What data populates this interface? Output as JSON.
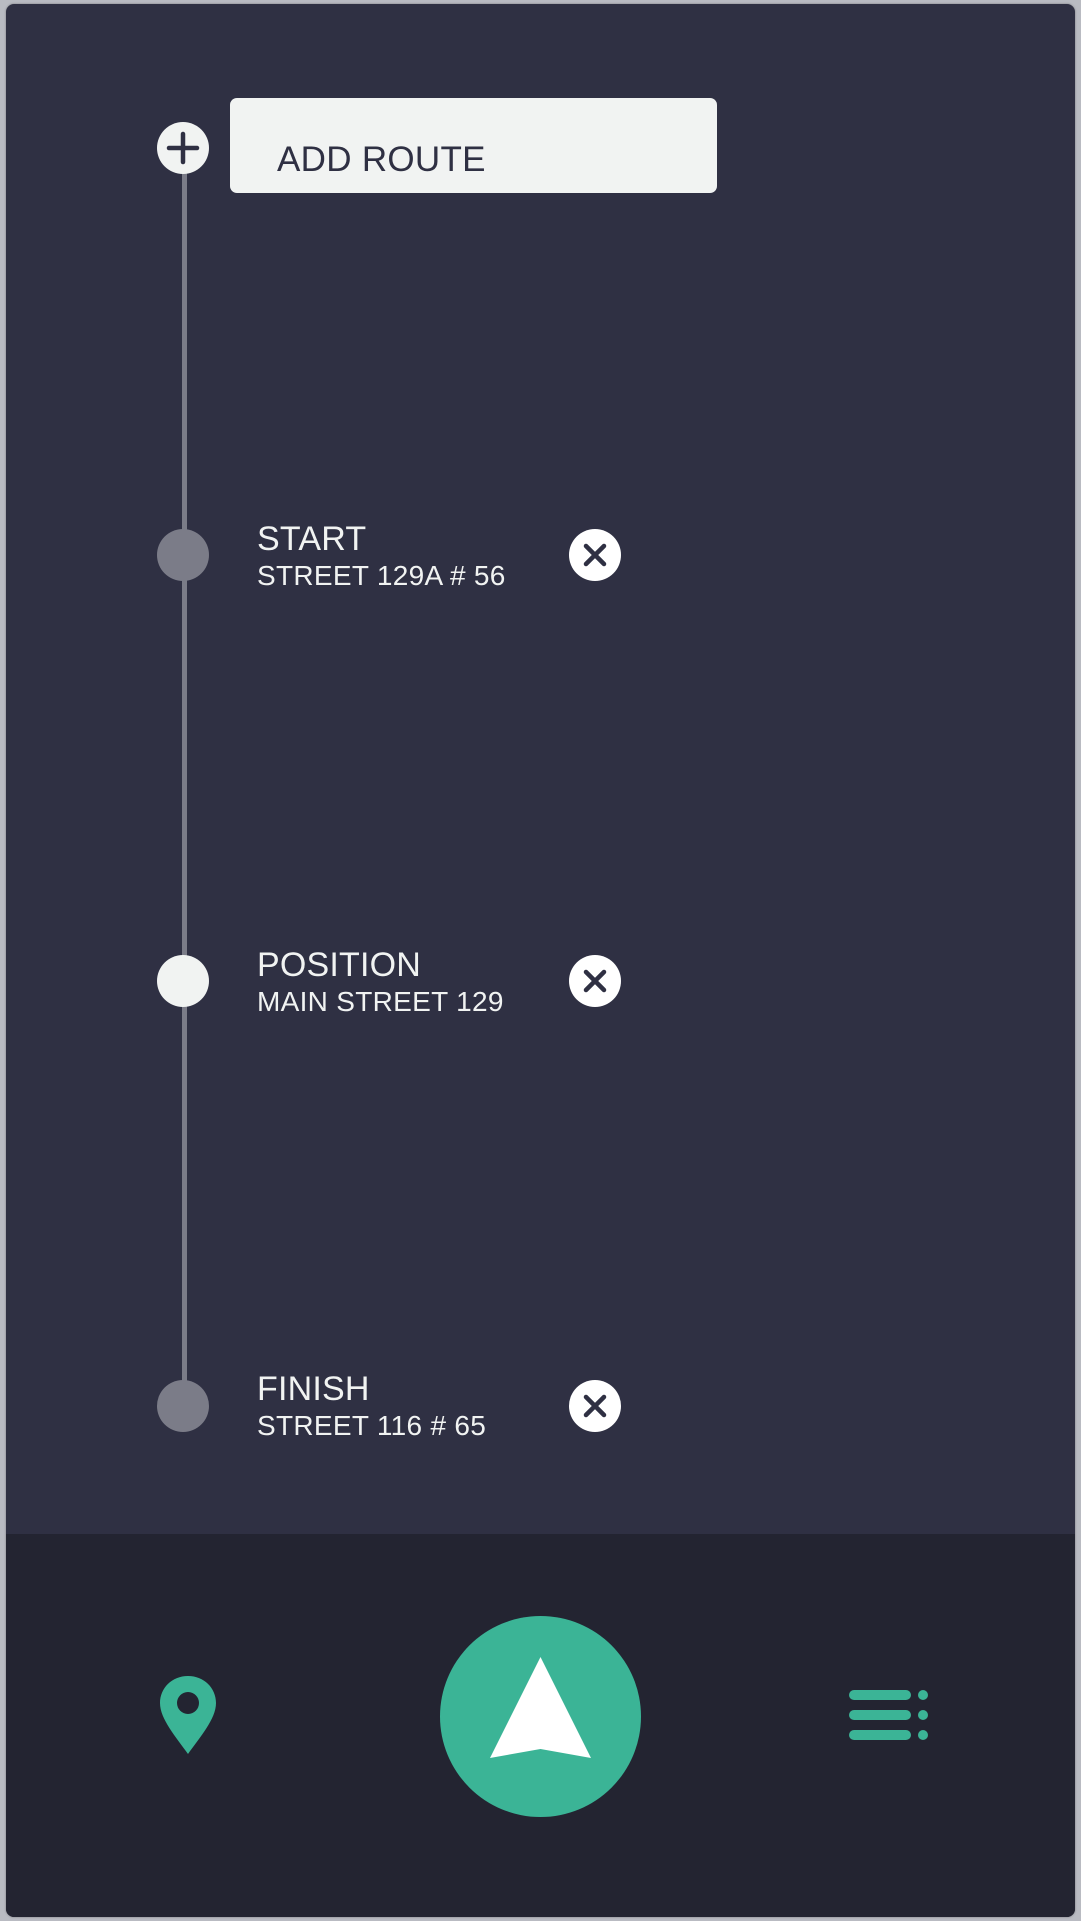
{
  "add_route": {
    "label": "ADD ROUTE",
    "icon": "plus-icon"
  },
  "waypoints": [
    {
      "title": "START",
      "address": "STREET 129A # 56",
      "marker": "inactive",
      "remove_icon": "close-icon"
    },
    {
      "title": "POSITION",
      "address": "MAIN STREET 129",
      "marker": "active",
      "remove_icon": "close-icon"
    },
    {
      "title": "FINISH",
      "address": "STREET 116 # 65",
      "marker": "inactive",
      "remove_icon": "close-icon"
    }
  ],
  "bottom_nav": {
    "left_icon": "map-pin-icon",
    "center_icon": "navigation-arrow-icon",
    "right_icon": "list-menu-icon"
  },
  "colors": {
    "background": "#2f3043",
    "bottom_bar": "#232431",
    "accent": "#3bb496",
    "light": "#f1f3f2",
    "marker_inactive": "#7b7c88"
  }
}
